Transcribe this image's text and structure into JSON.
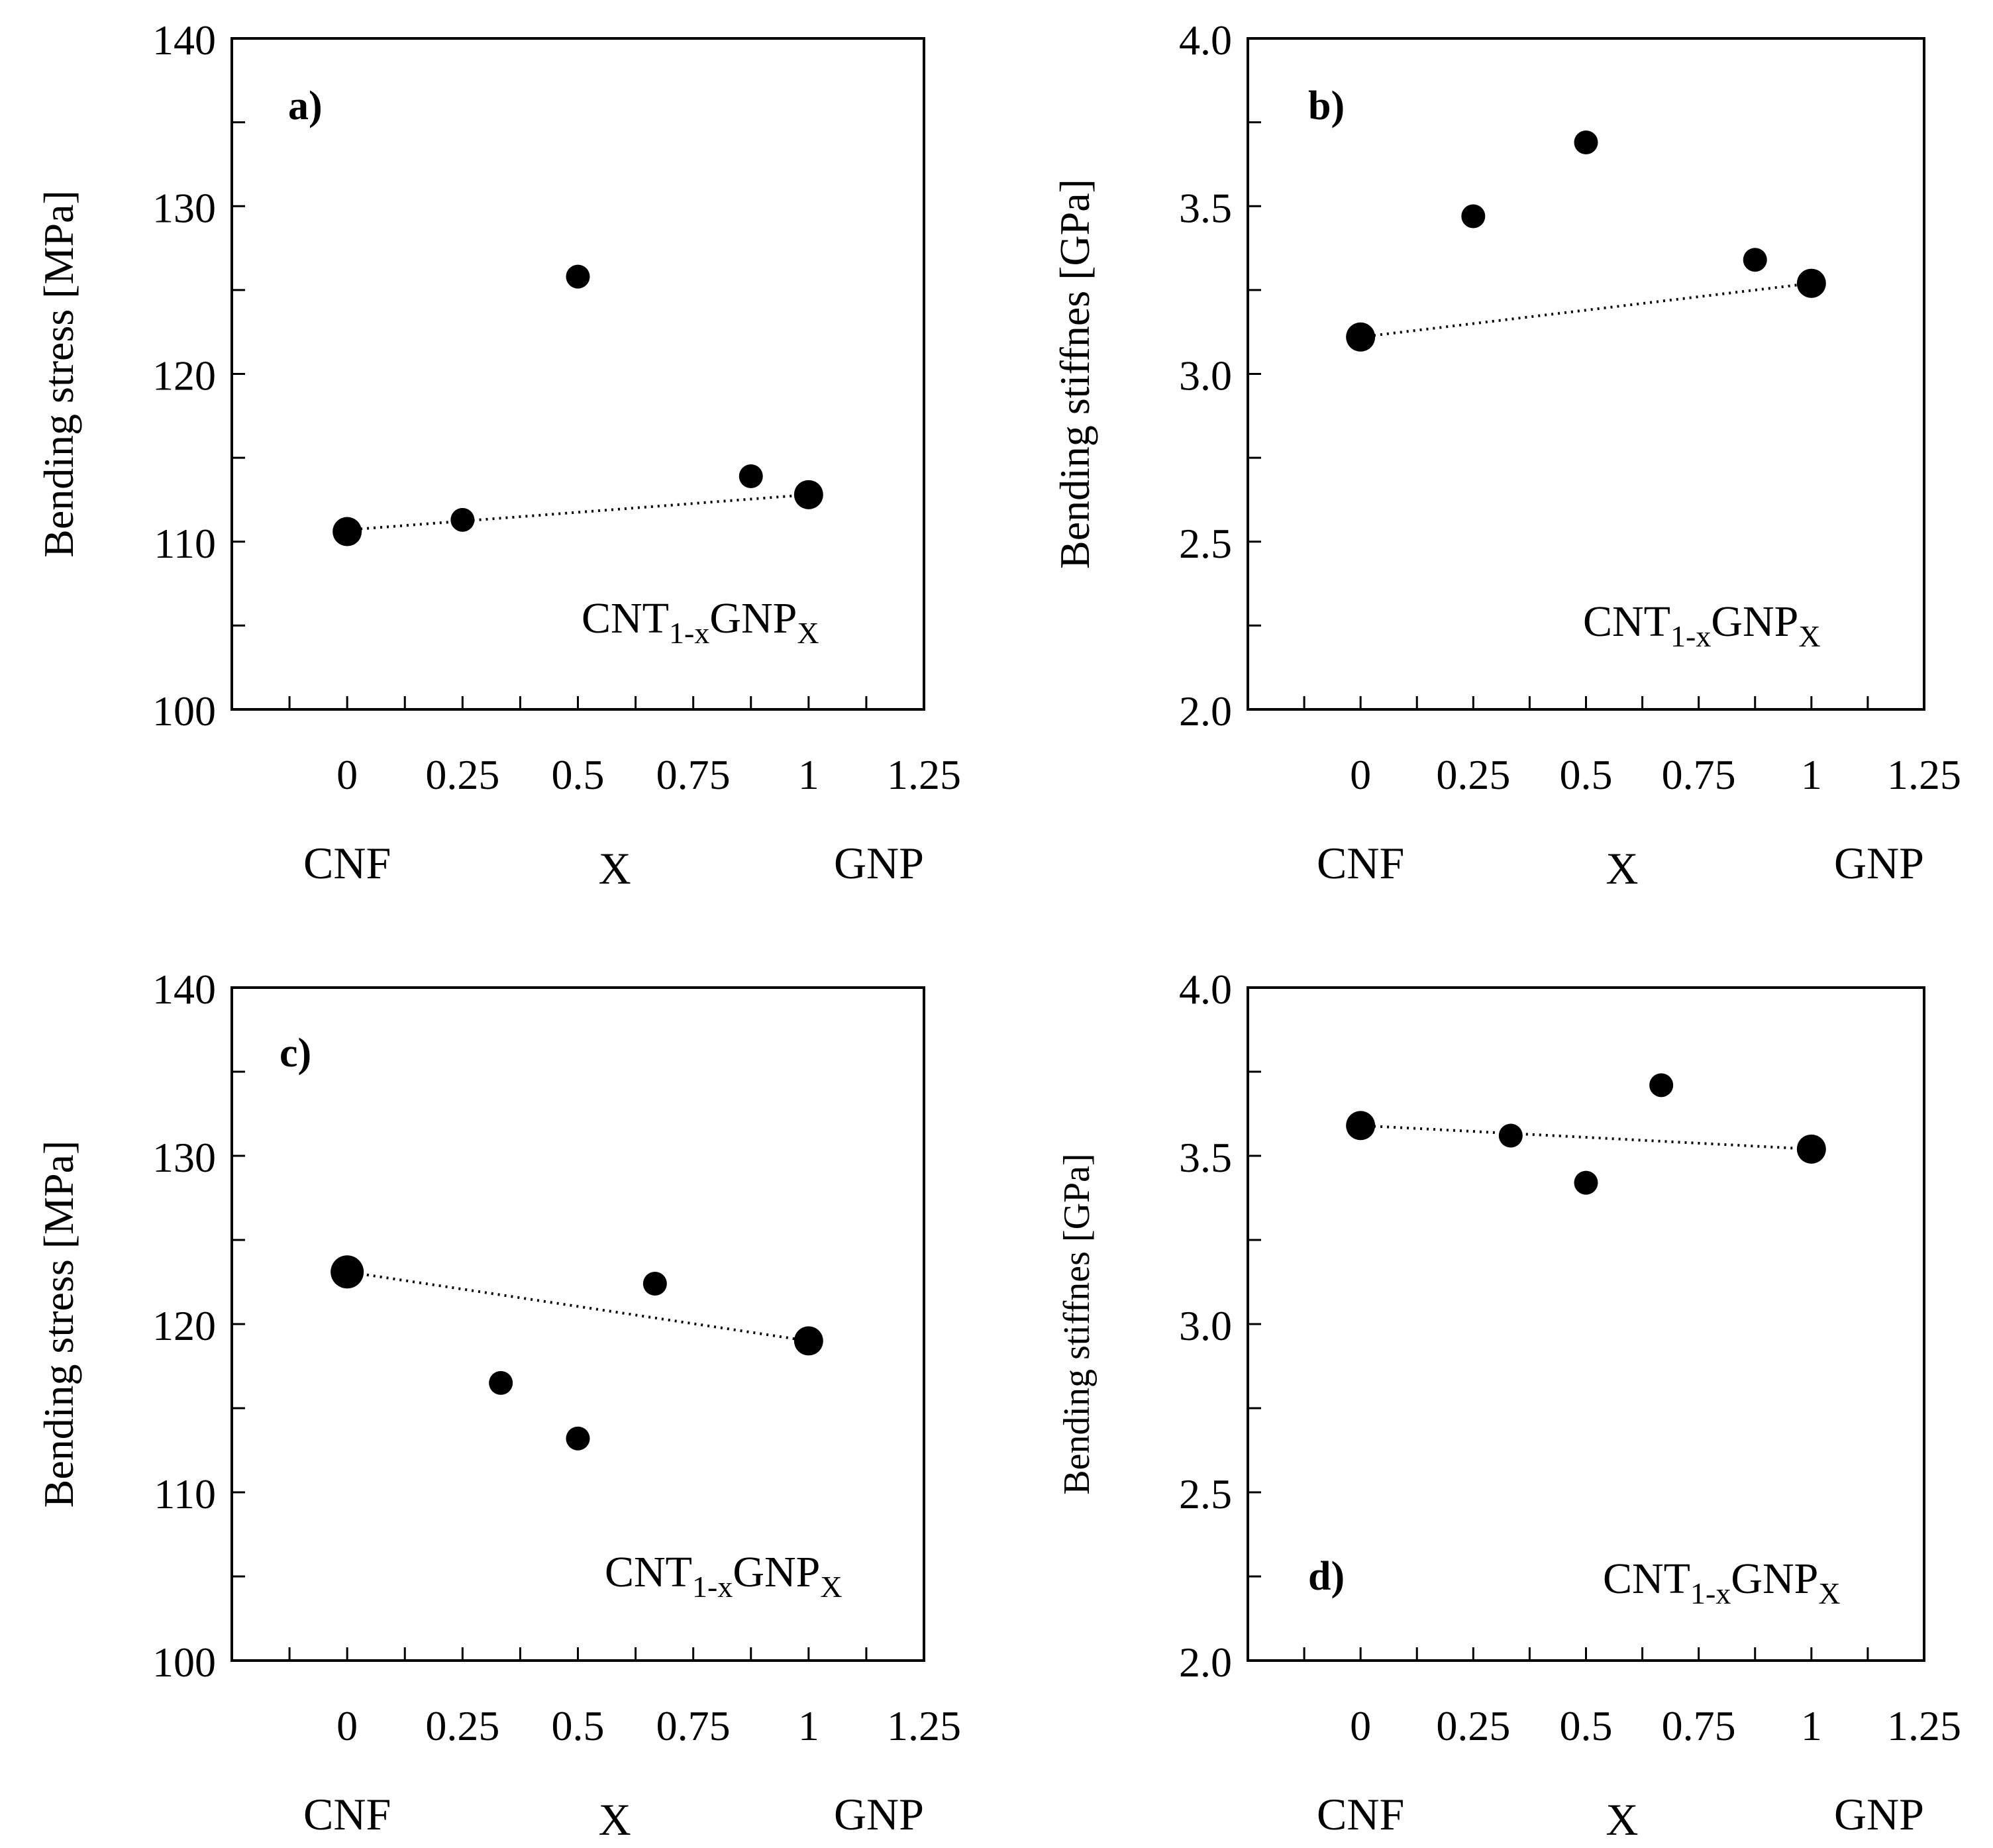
{
  "chart_data": [
    {
      "type": "scatter",
      "panel_label": "a)",
      "ylabel": "Bending stress [MPa]",
      "xlabel": "X",
      "x_left_label": "CNF",
      "x_right_label": "GNP",
      "annotation": {
        "base": "CNT",
        "sub1": "1-x",
        "mid": "GNP",
        "sub2": "X"
      },
      "xlim": [
        -0.25,
        1.25
      ],
      "ylim": [
        100,
        140
      ],
      "x_ticks": [
        0,
        0.25,
        0.5,
        0.75,
        1,
        1.25
      ],
      "x_tick_labels": [
        "0",
        "0.25",
        "0.5",
        "0.75",
        "1",
        "1.25"
      ],
      "y_ticks": [
        100,
        110,
        120,
        130,
        140
      ],
      "y_tick_labels": [
        "100",
        "110",
        "120",
        "130",
        "140"
      ],
      "y_minor_step": 5,
      "points": [
        {
          "x": 0,
          "y": 110.6,
          "size": "large"
        },
        {
          "x": 0.25,
          "y": 111.3,
          "size": "small"
        },
        {
          "x": 0.5,
          "y": 125.8,
          "size": "small"
        },
        {
          "x": 0.875,
          "y": 113.9,
          "size": "small"
        },
        {
          "x": 1,
          "y": 112.8,
          "size": "large"
        }
      ],
      "trendline": {
        "style": "dotted",
        "x": [
          0,
          1
        ],
        "y": [
          110.7,
          112.8
        ]
      }
    },
    {
      "type": "scatter",
      "panel_label": "b)",
      "ylabel": "Bending stiffnes [GPa]",
      "xlabel": "X",
      "x_left_label": "CNF",
      "x_right_label": "GNP",
      "annotation": {
        "base": "CNT",
        "sub1": "1-x",
        "mid": "GNP",
        "sub2": "X"
      },
      "xlim": [
        -0.25,
        1.25
      ],
      "ylim": [
        2.0,
        4.0
      ],
      "x_ticks": [
        0,
        0.25,
        0.5,
        0.75,
        1,
        1.25
      ],
      "x_tick_labels": [
        "0",
        "0.25",
        "0.5",
        "0.75",
        "1",
        "1.25"
      ],
      "y_ticks": [
        2.0,
        2.5,
        3.0,
        3.5,
        4.0
      ],
      "y_tick_labels": [
        "2.0",
        "2.5",
        "3.0",
        "3.5",
        "4.0"
      ],
      "y_minor_step": 0.25,
      "points": [
        {
          "x": 0,
          "y": 3.11,
          "size": "large"
        },
        {
          "x": 0.25,
          "y": 3.47,
          "size": "small"
        },
        {
          "x": 0.5,
          "y": 3.69,
          "size": "small"
        },
        {
          "x": 0.875,
          "y": 3.34,
          "size": "small"
        },
        {
          "x": 1,
          "y": 3.27,
          "size": "large"
        }
      ],
      "trendline": {
        "style": "dotted",
        "x": [
          0,
          1
        ],
        "y": [
          3.11,
          3.27
        ]
      }
    },
    {
      "type": "scatter",
      "panel_label": "c)",
      "ylabel": "Bending stress [MPa]",
      "xlabel": "X",
      "x_left_label": "CNF",
      "x_right_label": "GNP",
      "annotation": {
        "base": "CNT",
        "sub1": "1-x",
        "mid": "GNP",
        "sub2": "X"
      },
      "xlim": [
        -0.25,
        1.25
      ],
      "ylim": [
        100,
        140
      ],
      "x_ticks": [
        0,
        0.25,
        0.5,
        0.75,
        1,
        1.25
      ],
      "x_tick_labels": [
        "0",
        "0.25",
        "0.5",
        "0.75",
        "1",
        "1.25"
      ],
      "y_ticks": [
        100,
        110,
        120,
        130,
        140
      ],
      "y_tick_labels": [
        "100",
        "110",
        "120",
        "130",
        "140"
      ],
      "y_minor_step": 5,
      "points": [
        {
          "x": 0,
          "y": 123.1,
          "size": "xlarge"
        },
        {
          "x": 0.333,
          "y": 116.5,
          "size": "small"
        },
        {
          "x": 0.5,
          "y": 113.2,
          "size": "small"
        },
        {
          "x": 0.667,
          "y": 122.4,
          "size": "small"
        },
        {
          "x": 1,
          "y": 119.0,
          "size": "large"
        }
      ],
      "trendline": {
        "style": "dotted",
        "x": [
          0,
          1
        ],
        "y": [
          123.1,
          119.0
        ]
      }
    },
    {
      "type": "scatter",
      "panel_label": "d)",
      "ylabel": "Bending stiffnes [GPa]",
      "xlabel": "X",
      "x_left_label": "CNF",
      "x_right_label": "GNP",
      "annotation": {
        "base": "CNT",
        "sub1": "1-x",
        "mid": "GNP",
        "sub2": "X"
      },
      "xlim": [
        -0.25,
        1.25
      ],
      "ylim": [
        2.0,
        4.0
      ],
      "x_ticks": [
        0,
        0.25,
        0.5,
        0.75,
        1,
        1.25
      ],
      "x_tick_labels": [
        "0",
        "0.25",
        "0.5",
        "0.75",
        "1",
        "1.25"
      ],
      "y_ticks": [
        2.0,
        2.5,
        3.0,
        3.5,
        4.0
      ],
      "y_tick_labels": [
        "2.0",
        "2.5",
        "3.0",
        "3.5",
        "4.0"
      ],
      "y_minor_step": 0.25,
      "points": [
        {
          "x": 0,
          "y": 3.59,
          "size": "large"
        },
        {
          "x": 0.333,
          "y": 3.56,
          "size": "small"
        },
        {
          "x": 0.5,
          "y": 3.42,
          "size": "small"
        },
        {
          "x": 0.667,
          "y": 3.71,
          "size": "small"
        },
        {
          "x": 1,
          "y": 3.52,
          "size": "large"
        }
      ],
      "trendline": {
        "style": "dotted",
        "x": [
          0,
          1
        ],
        "y": [
          3.59,
          3.52
        ]
      }
    }
  ]
}
